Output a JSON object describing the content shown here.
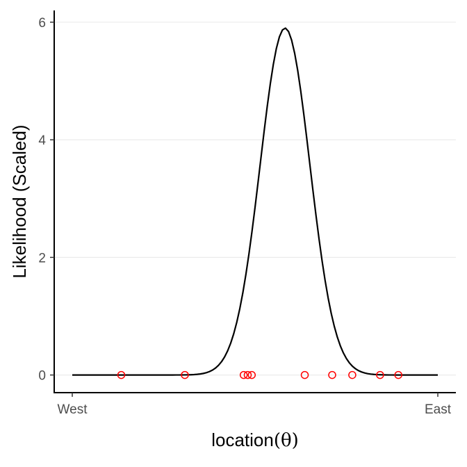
{
  "chart_data": {
    "type": "line",
    "xlabel": "location",
    "xlabel_symbol": "(θ)",
    "ylabel": "Likelihood (Scaled)",
    "xlim": [
      0,
      1
    ],
    "ylim": [
      -0.3,
      6.2
    ],
    "x_ticks": [
      {
        "value": 0,
        "label": "West"
      },
      {
        "value": 1,
        "label": "East"
      }
    ],
    "y_ticks": [
      0,
      2,
      4,
      6
    ],
    "grid": {
      "horizontal": true,
      "vertical": false
    },
    "curve": {
      "distribution": "normal",
      "mean": 0.582,
      "sd": 0.068,
      "peak": 5.9,
      "x_range": [
        0,
        1
      ],
      "color": "#000000"
    },
    "observations": {
      "y": 0,
      "x": [
        0.134,
        0.308,
        0.469,
        0.48,
        0.491,
        0.636,
        0.711,
        0.766,
        0.842,
        0.892
      ],
      "color": "#ff0000"
    }
  }
}
